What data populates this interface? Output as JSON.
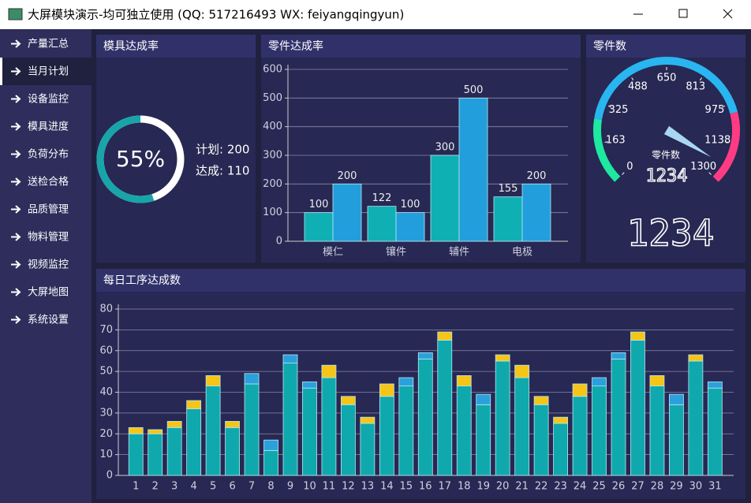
{
  "window": {
    "title": "大屏模块演示-均可独立使用 (QQ: 517216493  WX: feiyangqingyun)"
  },
  "menu": {
    "items": [
      "产量汇总",
      "当月计划",
      "设备监控",
      "模具进度",
      "负荷分布",
      "送检合格",
      "品质管理",
      "物料管理",
      "视频监控",
      "大屏地图",
      "系统设置"
    ],
    "selected": 1
  },
  "chart_data": [
    {
      "type": "ring",
      "title": "模具达成率",
      "value": 55,
      "value_label": "55%",
      "notes": [
        "计划: 200",
        "达成: 110"
      ],
      "color": "#17a5a9"
    },
    {
      "type": "bar",
      "title": "零件达成率",
      "categories": [
        "模仁",
        "镶件",
        "辅件",
        "电极"
      ],
      "series": [
        {
          "color": "#0fb0b4",
          "values": [
            100,
            122,
            300,
            155
          ]
        },
        {
          "color": "#229edd",
          "values": [
            200,
            100,
            500,
            200
          ]
        }
      ],
      "ylim": [
        0,
        600
      ],
      "yticks": [
        0,
        100,
        200,
        300,
        400,
        500,
        600
      ],
      "grid": true,
      "data_labels": true
    },
    {
      "type": "gauge",
      "title": "零件数",
      "label": "零件数",
      "value": 1234,
      "ylim": [
        0,
        1300
      ],
      "yticks": [
        0,
        163,
        325,
        488,
        650,
        813,
        975,
        1138,
        1300
      ],
      "colors": [
        "#1de9a0",
        "#29b6f0",
        "#ff3c83"
      ]
    },
    {
      "type": "bar",
      "title": "每日工序达成数",
      "stacked": true,
      "categories": [
        "1",
        "2",
        "3",
        "4",
        "5",
        "6",
        "7",
        "8",
        "9",
        "10",
        "11",
        "12",
        "13",
        "14",
        "15",
        "16",
        "17",
        "18",
        "19",
        "20",
        "21",
        "22",
        "23",
        "24",
        "25",
        "26",
        "27",
        "28",
        "29",
        "30",
        "31"
      ],
      "series": [
        {
          "color": "#0fa9ad",
          "values": [
            20,
            20,
            23,
            32,
            43,
            23,
            44,
            12,
            54,
            42,
            47,
            34,
            25,
            38,
            43,
            56,
            65,
            43,
            34,
            55,
            47,
            34,
            25,
            38,
            43,
            56,
            65,
            43,
            34,
            55,
            42
          ]
        },
        {
          "color": "#f5c518",
          "values": [
            3,
            2,
            3,
            4,
            5,
            3,
            null,
            null,
            null,
            null,
            6,
            4,
            3,
            6,
            null,
            null,
            4,
            5,
            null,
            3,
            6,
            4,
            3,
            6,
            null,
            null,
            4,
            5,
            null,
            3,
            null
          ]
        },
        {
          "color": "#2ba0dc",
          "values": [
            null,
            null,
            null,
            null,
            null,
            null,
            5,
            5,
            4,
            3,
            null,
            null,
            null,
            null,
            4,
            3,
            null,
            null,
            5,
            null,
            null,
            null,
            null,
            null,
            4,
            3,
            null,
            null,
            5,
            null,
            3
          ]
        }
      ],
      "ylim": [
        0,
        80
      ],
      "yticks": [
        0,
        10,
        20,
        30,
        40,
        50,
        60,
        70,
        80
      ],
      "grid": true
    }
  ]
}
